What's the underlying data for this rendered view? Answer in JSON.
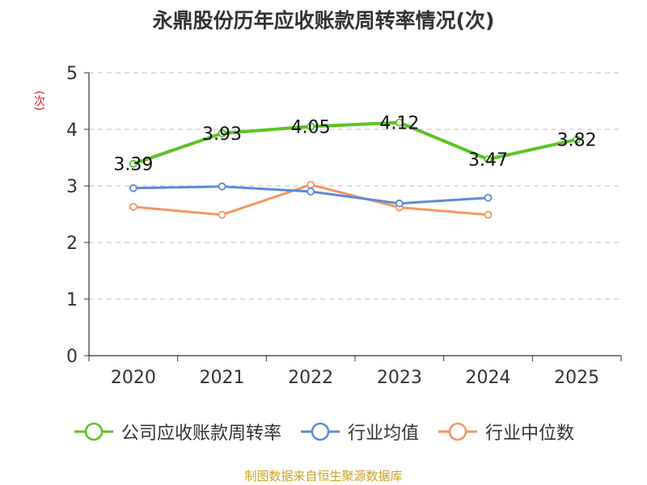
{
  "chart_data": {
    "type": "line",
    "title": "永鼎股份历年应收账款周转率情况(次)",
    "ylabel": "(次)",
    "categories": [
      "2020",
      "2021",
      "2022",
      "2023",
      "2024",
      "2025"
    ],
    "ylim": [
      0,
      5
    ],
    "yticks": [
      0,
      1,
      2,
      3,
      4,
      5
    ],
    "grid": true,
    "legend_position": "bottom",
    "series": [
      {
        "name": "公司应收账款周转率",
        "color": "#5cc424",
        "values": [
          3.39,
          3.93,
          4.05,
          4.12,
          3.47,
          3.82
        ],
        "labels": [
          "3.39",
          "3.93",
          "4.05",
          "4.12",
          "3.47",
          "3.82"
        ],
        "stroke_width": 4
      },
      {
        "name": "行业均值",
        "color": "#5b8bd9",
        "values": [
          2.96,
          2.99,
          2.9,
          2.69,
          2.79,
          null
        ],
        "stroke_width": 3
      },
      {
        "name": "行业中位数",
        "color": "#f59561",
        "values": [
          2.63,
          2.49,
          3.02,
          2.62,
          2.49,
          null
        ],
        "stroke_width": 3
      }
    ]
  },
  "source": "制图数据来自恒生聚源数据库"
}
